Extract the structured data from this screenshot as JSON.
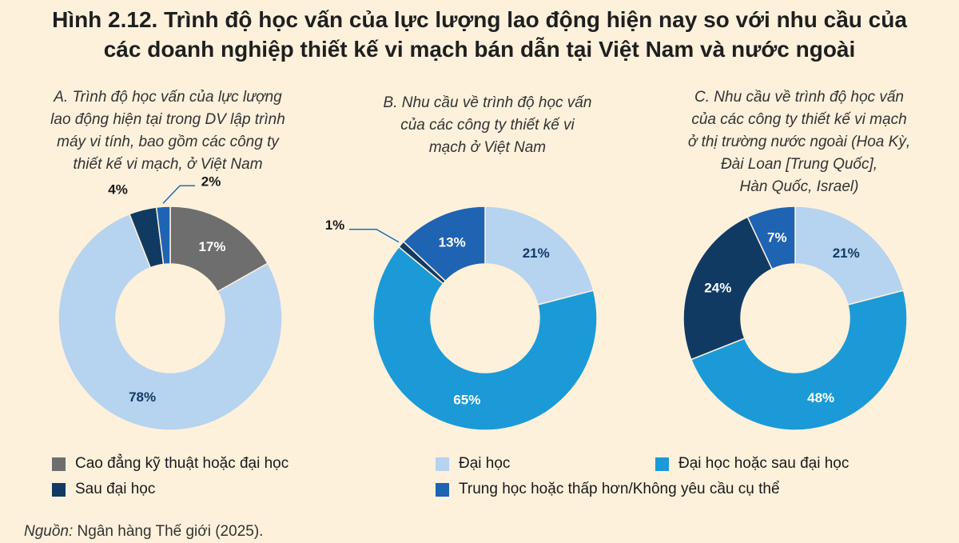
{
  "title_line1": "Hình 2.12. Trình độ học vấn của lực lượng lao động hiện nay so với nhu cầu của",
  "title_line2": "các doanh nghiệp thiết kế vi mạch bán dẫn tại Việt Nam và nước ngoài",
  "colors": {
    "cao_dang": "#6e6e6e",
    "dai_hoc": "#b6d3ef",
    "dai_hoc_sau": "#1b9ad7",
    "sau_dai_hoc": "#113a63",
    "trung_hoc": "#1f63b3"
  },
  "legend": [
    {
      "key": "cao_dang",
      "label": "Cao đẳng kỹ thuật hoặc đại học"
    },
    {
      "key": "sau_dai_hoc",
      "label": "Sau đại học"
    },
    {
      "key": "dai_hoc",
      "label": "Đại học"
    },
    {
      "key": "trung_hoc",
      "label": "Trung học hoặc thấp hơn/Không yêu cầu cụ thể"
    },
    {
      "key": "dai_hoc_sau",
      "label": "Đại học hoặc sau đại học"
    }
  ],
  "source_label": "Nguồn:",
  "source_text": " Ngân hàng Thế giới (2025).",
  "chart_data": [
    {
      "type": "pie",
      "title": "A. Trình độ học vấn của lực lượng lao động hiện tại trong DV lập trình máy vi tính, bao gồm các công ty thiết kế vi mạch, ở Việt Nam",
      "title_lines": [
        "A. Trình độ học vấn của lực lượng",
        "lao động hiện tại trong DV lập trình",
        "máy vi tính, bao gồm các công ty",
        "thiết kế vi mạch, ở Việt Nam"
      ],
      "slices": [
        {
          "key": "cao_dang",
          "value": 17,
          "label": "17%"
        },
        {
          "key": "dai_hoc",
          "value": 78,
          "label": "78%"
        },
        {
          "key": "sau_dai_hoc",
          "value": 4,
          "label": "4%"
        },
        {
          "key": "trung_hoc",
          "value": 2,
          "label": "2%"
        }
      ]
    },
    {
      "type": "pie",
      "title": "B. Nhu cầu về trình độ học vấn của các công ty thiết kế vi mạch ở Việt Nam",
      "title_lines": [
        "B. Nhu cầu về trình độ học vấn",
        "của các công ty thiết kế vi",
        "mạch ở Việt Nam"
      ],
      "slices": [
        {
          "key": "dai_hoc",
          "value": 21,
          "label": "21%"
        },
        {
          "key": "dai_hoc_sau",
          "value": 65,
          "label": "65%"
        },
        {
          "key": "sau_dai_hoc",
          "value": 1,
          "label": "1%"
        },
        {
          "key": "trung_hoc",
          "value": 13,
          "label": "13%"
        }
      ]
    },
    {
      "type": "pie",
      "title": "C. Nhu cầu về trình độ học vấn của các công ty thiết kế vi mạch ở thị trường nước ngoài (Hoa Kỳ, Đài Loan [Trung Quốc], Hàn Quốc, Israel)",
      "title_lines": [
        "C. Nhu cầu về trình độ học vấn",
        "của các công ty thiết kế vi mạch",
        "ở thị trường nước ngoài (Hoa Kỳ,",
        "Đài Loan [Trung Quốc],",
        "Hàn Quốc, Israel)"
      ],
      "slices": [
        {
          "key": "dai_hoc",
          "value": 21,
          "label": "21%"
        },
        {
          "key": "dai_hoc_sau",
          "value": 48,
          "label": "48%"
        },
        {
          "key": "sau_dai_hoc",
          "value": 24,
          "label": "24%"
        },
        {
          "key": "trung_hoc",
          "value": 7,
          "label": "7%"
        }
      ]
    }
  ]
}
